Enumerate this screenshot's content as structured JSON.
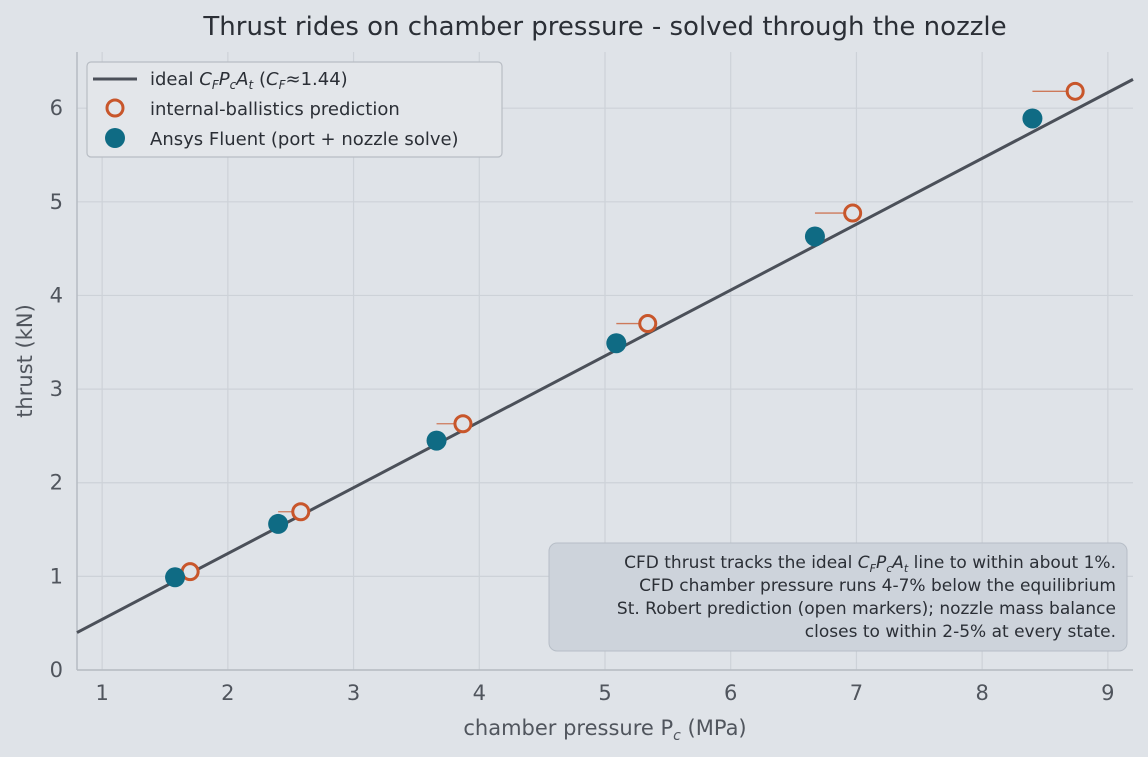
{
  "chart_data": {
    "type": "scatter",
    "title": "Thrust rides on chamber pressure - solved through the nozzle",
    "xlabel": "chamber pressure  P_c  (MPa)",
    "xlabel_main": "chamber pressure  P",
    "xlabel_sub": "c",
    "xlabel_units": "  (MPa)",
    "ylabel": "thrust  (kN)",
    "xlim": [
      0.8,
      9.2
    ],
    "ylim": [
      0,
      6.6
    ],
    "xticks": [
      1,
      2,
      3,
      4,
      5,
      6,
      7,
      8,
      9
    ],
    "yticks": [
      0,
      1,
      2,
      3,
      4,
      5,
      6
    ],
    "grid": true,
    "legend_position": "top-left",
    "ideal_line": {
      "name": "ideal  C_F P_c A_t  (C_F≈1.44)",
      "slope": 0.7033,
      "intercept": -0.1626
    },
    "series": [
      {
        "name": "internal-ballistics prediction",
        "marker": "open-circle",
        "points": [
          {
            "x": 1.7,
            "y": 1.05
          },
          {
            "x": 2.58,
            "y": 1.69
          },
          {
            "x": 3.87,
            "y": 2.63
          },
          {
            "x": 5.34,
            "y": 3.7
          },
          {
            "x": 6.97,
            "y": 4.88
          },
          {
            "x": 8.74,
            "y": 6.18
          }
        ]
      },
      {
        "name": "Ansys Fluent (port + nozzle solve)",
        "marker": "filled-circle",
        "points": [
          {
            "x": 1.58,
            "y": 0.99
          },
          {
            "x": 2.4,
            "y": 1.56
          },
          {
            "x": 3.66,
            "y": 2.45
          },
          {
            "x": 5.09,
            "y": 3.49
          },
          {
            "x": 6.67,
            "y": 4.63
          },
          {
            "x": 8.4,
            "y": 5.89
          }
        ]
      }
    ],
    "annotation": {
      "line1_pre": "CFD thrust tracks the ideal ",
      "line1_post": " line to within about 1%.",
      "line2": "CFD chamber pressure runs 4-7% below the equilibrium",
      "line3": "St. Robert prediction (open markers); nozzle mass balance",
      "line4": "closes to within 2-5% at every state."
    }
  },
  "colors": {
    "background": "#dfe3e8",
    "ideal_line": "#4b5059",
    "prediction": "#c8562b",
    "fluent": "#0f6b84",
    "grid": "#cdd2d8",
    "text": "#2b2f36",
    "axis_text": "#50555d",
    "annotation_bg": "#cdd3db"
  }
}
